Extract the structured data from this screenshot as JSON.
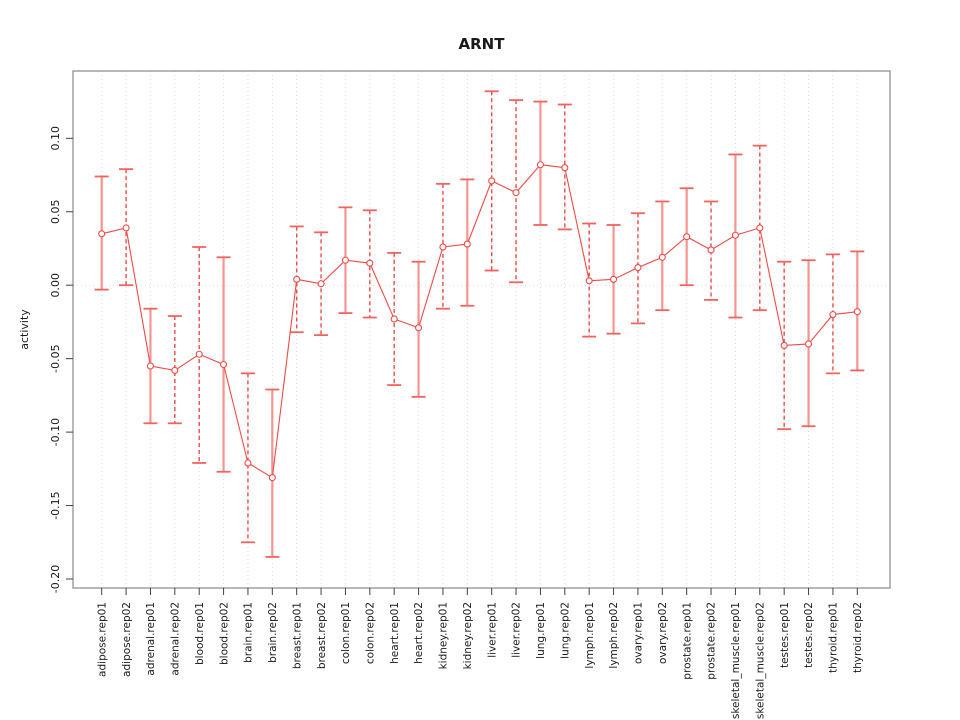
{
  "page": {
    "background": "#ffffff"
  },
  "chart_data": {
    "type": "line",
    "subtype": "points-with-error-bars",
    "title": "ARNT",
    "xlabel": "",
    "ylabel": "activity",
    "legend": "none",
    "grid": {
      "vertical": "dotted line at every category",
      "horizontal": "dotted line at 0.00 only"
    },
    "ylim": [
      -0.205,
      0.146
    ],
    "yticks": [
      {
        "value": 0.1,
        "label": "0.10"
      },
      {
        "value": 0.05,
        "label": "0.05"
      },
      {
        "value": 0.0,
        "label": "0.00"
      },
      {
        "value": -0.05,
        "label": "-0.05"
      },
      {
        "value": -0.1,
        "label": "-0.10"
      },
      {
        "value": -0.15,
        "label": "-0.15"
      },
      {
        "value": -0.2,
        "label": "-0.20"
      }
    ],
    "categories": [
      "adipose.rep01",
      "adipose.rep02",
      "adrenal.rep01",
      "adrenal.rep02",
      "blood.rep01",
      "blood.rep02",
      "brain.rep01",
      "brain.rep02",
      "breast.rep01",
      "breast.rep02",
      "colon.rep01",
      "colon.rep02",
      "heart.rep01",
      "heart.rep02",
      "kidney.rep01",
      "kidney.rep02",
      "liver.rep01",
      "liver.rep02",
      "lung.rep01",
      "lung.rep02",
      "lymph.rep01",
      "lymph.rep02",
      "ovary.rep01",
      "ovary.rep02",
      "prostate.rep01",
      "prostate.rep02",
      "skeletal_muscle.rep01",
      "skeletal_muscle.rep02",
      "testes.rep01",
      "testes.rep02",
      "thyroid.rep01",
      "thyroid.rep02"
    ],
    "points": [
      {
        "label": "adipose.rep01",
        "value": 0.035,
        "lower": -0.003,
        "upper": 0.074,
        "bar": "solid"
      },
      {
        "label": "adipose.rep02",
        "value": 0.039,
        "lower": 0.0,
        "upper": 0.079,
        "bar": "dashed"
      },
      {
        "label": "adrenal.rep01",
        "value": -0.055,
        "lower": -0.094,
        "upper": -0.016,
        "bar": "solid"
      },
      {
        "label": "adrenal.rep02",
        "value": -0.058,
        "lower": -0.094,
        "upper": -0.021,
        "bar": "dashed"
      },
      {
        "label": "blood.rep01",
        "value": -0.047,
        "lower": -0.121,
        "upper": 0.026,
        "bar": "dashed"
      },
      {
        "label": "blood.rep02",
        "value": -0.054,
        "lower": -0.127,
        "upper": 0.019,
        "bar": "solid"
      },
      {
        "label": "brain.rep01",
        "value": -0.121,
        "lower": -0.175,
        "upper": -0.06,
        "bar": "dashed"
      },
      {
        "label": "brain.rep02",
        "value": -0.131,
        "lower": -0.185,
        "upper": -0.071,
        "bar": "solid"
      },
      {
        "label": "breast.rep01",
        "value": 0.004,
        "lower": -0.032,
        "upper": 0.04,
        "bar": "dashed"
      },
      {
        "label": "breast.rep02",
        "value": 0.001,
        "lower": -0.034,
        "upper": 0.036,
        "bar": "dashed"
      },
      {
        "label": "colon.rep01",
        "value": 0.017,
        "lower": -0.019,
        "upper": 0.053,
        "bar": "solid"
      },
      {
        "label": "colon.rep02",
        "value": 0.015,
        "lower": -0.022,
        "upper": 0.051,
        "bar": "dashed"
      },
      {
        "label": "heart.rep01",
        "value": -0.023,
        "lower": -0.068,
        "upper": 0.022,
        "bar": "dashed"
      },
      {
        "label": "heart.rep02",
        "value": -0.029,
        "lower": -0.076,
        "upper": 0.016,
        "bar": "solid"
      },
      {
        "label": "kidney.rep01",
        "value": 0.026,
        "lower": -0.016,
        "upper": 0.069,
        "bar": "dashed"
      },
      {
        "label": "kidney.rep02",
        "value": 0.028,
        "lower": -0.014,
        "upper": 0.072,
        "bar": "solid"
      },
      {
        "label": "liver.rep01",
        "value": 0.071,
        "lower": 0.01,
        "upper": 0.132,
        "bar": "dashed"
      },
      {
        "label": "liver.rep02",
        "value": 0.063,
        "lower": 0.002,
        "upper": 0.126,
        "bar": "dashed"
      },
      {
        "label": "lung.rep01",
        "value": 0.082,
        "lower": 0.041,
        "upper": 0.125,
        "bar": "solid"
      },
      {
        "label": "lung.rep02",
        "value": 0.08,
        "lower": 0.038,
        "upper": 0.123,
        "bar": "dashed"
      },
      {
        "label": "lymph.rep01",
        "value": 0.003,
        "lower": -0.035,
        "upper": 0.042,
        "bar": "dashed"
      },
      {
        "label": "lymph.rep02",
        "value": 0.004,
        "lower": -0.033,
        "upper": 0.041,
        "bar": "solid"
      },
      {
        "label": "ovary.rep01",
        "value": 0.012,
        "lower": -0.026,
        "upper": 0.049,
        "bar": "dashed"
      },
      {
        "label": "ovary.rep02",
        "value": 0.019,
        "lower": -0.017,
        "upper": 0.057,
        "bar": "solid"
      },
      {
        "label": "prostate.rep01",
        "value": 0.033,
        "lower": 0.0,
        "upper": 0.066,
        "bar": "solid"
      },
      {
        "label": "prostate.rep02",
        "value": 0.024,
        "lower": -0.01,
        "upper": 0.057,
        "bar": "dashed"
      },
      {
        "label": "skeletal_muscle.rep01",
        "value": 0.034,
        "lower": -0.022,
        "upper": 0.089,
        "bar": "solid"
      },
      {
        "label": "skeletal_muscle.rep02",
        "value": 0.039,
        "lower": -0.017,
        "upper": 0.095,
        "bar": "dashed"
      },
      {
        "label": "testes.rep01",
        "value": -0.041,
        "lower": -0.098,
        "upper": 0.016,
        "bar": "dashed"
      },
      {
        "label": "testes.rep02",
        "value": -0.04,
        "lower": -0.096,
        "upper": 0.017,
        "bar": "solid"
      },
      {
        "label": "thyroid.rep01",
        "value": -0.02,
        "lower": -0.06,
        "upper": 0.021,
        "bar": "dashed"
      },
      {
        "label": "thyroid.rep02",
        "value": -0.018,
        "lower": -0.058,
        "upper": 0.023,
        "bar": "solid"
      }
    ],
    "colors": {
      "line": "#ef4b46",
      "marker_stroke": "#ef4b46",
      "marker_fill": "#ffffff",
      "solid_bar": "#f69590",
      "dashed_bar": "#ef4b46",
      "cap": "#f1635e",
      "grid": "#d9d9d9",
      "frame": "#919191",
      "tick": "#404040",
      "text": "#1a1a1a"
    }
  }
}
